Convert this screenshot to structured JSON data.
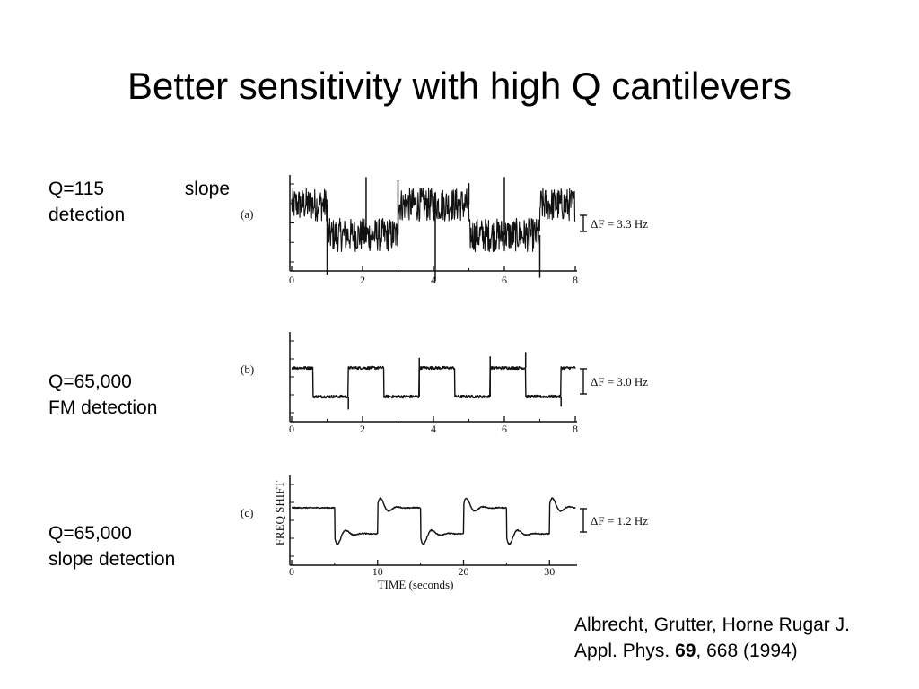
{
  "slide": {
    "title": "Better sensitivity with high Q cantilevers",
    "conditions": [
      {
        "line1_left": "Q=115",
        "line1_right": "slope",
        "line2": "detection"
      },
      {
        "line1": "Q=65,000",
        "line2": "FM detection"
      },
      {
        "line1": "Q=65,000",
        "line2": "slope detection"
      }
    ],
    "citation": {
      "line1": "Albrecht, Grutter, Horne Rugar J.",
      "line2_prefix": "Appl. Phys. ",
      "volume": "69",
      "line2_suffix": ", 668 (1994)"
    }
  },
  "chart_data": [
    {
      "type": "line",
      "panel_label": "(a)",
      "scale_bar": "ΔF = 3.3 Hz",
      "xlim": [
        0,
        8
      ],
      "xticks": [
        "0",
        "2",
        "4",
        "6",
        "8"
      ],
      "x": [
        0,
        1,
        1,
        3,
        3,
        5,
        5,
        7,
        7,
        8
      ],
      "y": [
        1.0,
        1.0,
        0.0,
        0.0,
        1.0,
        1.0,
        0.0,
        0.0,
        1.0,
        1.0
      ],
      "noise": 0.55,
      "spikes": [
        {
          "x": 1.0,
          "y": -1.3
        },
        {
          "x": 2.1,
          "y": 1.9
        },
        {
          "x": 3.0,
          "y": 1.8
        },
        {
          "x": 4.05,
          "y": -1.5
        },
        {
          "x": 5.0,
          "y": 1.7
        },
        {
          "x": 6.0,
          "y": 1.9
        },
        {
          "x": 7.0,
          "y": -1.4
        }
      ],
      "ylim": [
        -1.6,
        2.3
      ]
    },
    {
      "type": "line",
      "panel_label": "(b)",
      "scale_bar": "ΔF = 3.0 Hz",
      "xlim": [
        0,
        8
      ],
      "xticks": [
        "0",
        "2",
        "4",
        "6",
        "8"
      ],
      "x": [
        0,
        0.6,
        0.6,
        1.6,
        1.6,
        2.6,
        2.6,
        3.6,
        3.6,
        4.6,
        4.6,
        5.6,
        5.6,
        6.6,
        6.6,
        7.6,
        7.6,
        8
      ],
      "y": [
        1.0,
        1.0,
        0.0,
        0.0,
        1.0,
        1.0,
        0.0,
        0.0,
        1.0,
        1.0,
        0.0,
        0.0,
        1.0,
        1.0,
        0.0,
        0.0,
        1.0,
        1.0
      ],
      "noise": 0.05,
      "spikes": [
        {
          "x": 1.6,
          "y": -0.45
        },
        {
          "x": 3.6,
          "y": 1.35
        },
        {
          "x": 5.6,
          "y": 1.4
        },
        {
          "x": 6.6,
          "y": 1.55
        },
        {
          "x": 7.6,
          "y": -0.35
        }
      ],
      "ylim": [
        -0.9,
        2.1
      ]
    },
    {
      "type": "line",
      "panel_label": "(c)",
      "scale_bar": "ΔF = 1.2 Hz",
      "xlabel": "TIME (seconds)",
      "ylabel": "FREQ SHIFT",
      "xlim": [
        0,
        33
      ],
      "xticks": [
        "0",
        "10",
        "20",
        "30"
      ],
      "x": [
        0,
        5,
        5,
        10,
        10,
        15,
        15,
        20,
        20,
        25,
        25,
        30,
        30,
        33
      ],
      "y": [
        1.0,
        1.0,
        0.0,
        0.0,
        1.0,
        1.0,
        0.0,
        0.0,
        1.0,
        1.0,
        0.0,
        0.0,
        1.0,
        1.0
      ],
      "noise": 0.02,
      "ringing": true,
      "ylim": [
        -1.0,
        2.2
      ]
    }
  ]
}
